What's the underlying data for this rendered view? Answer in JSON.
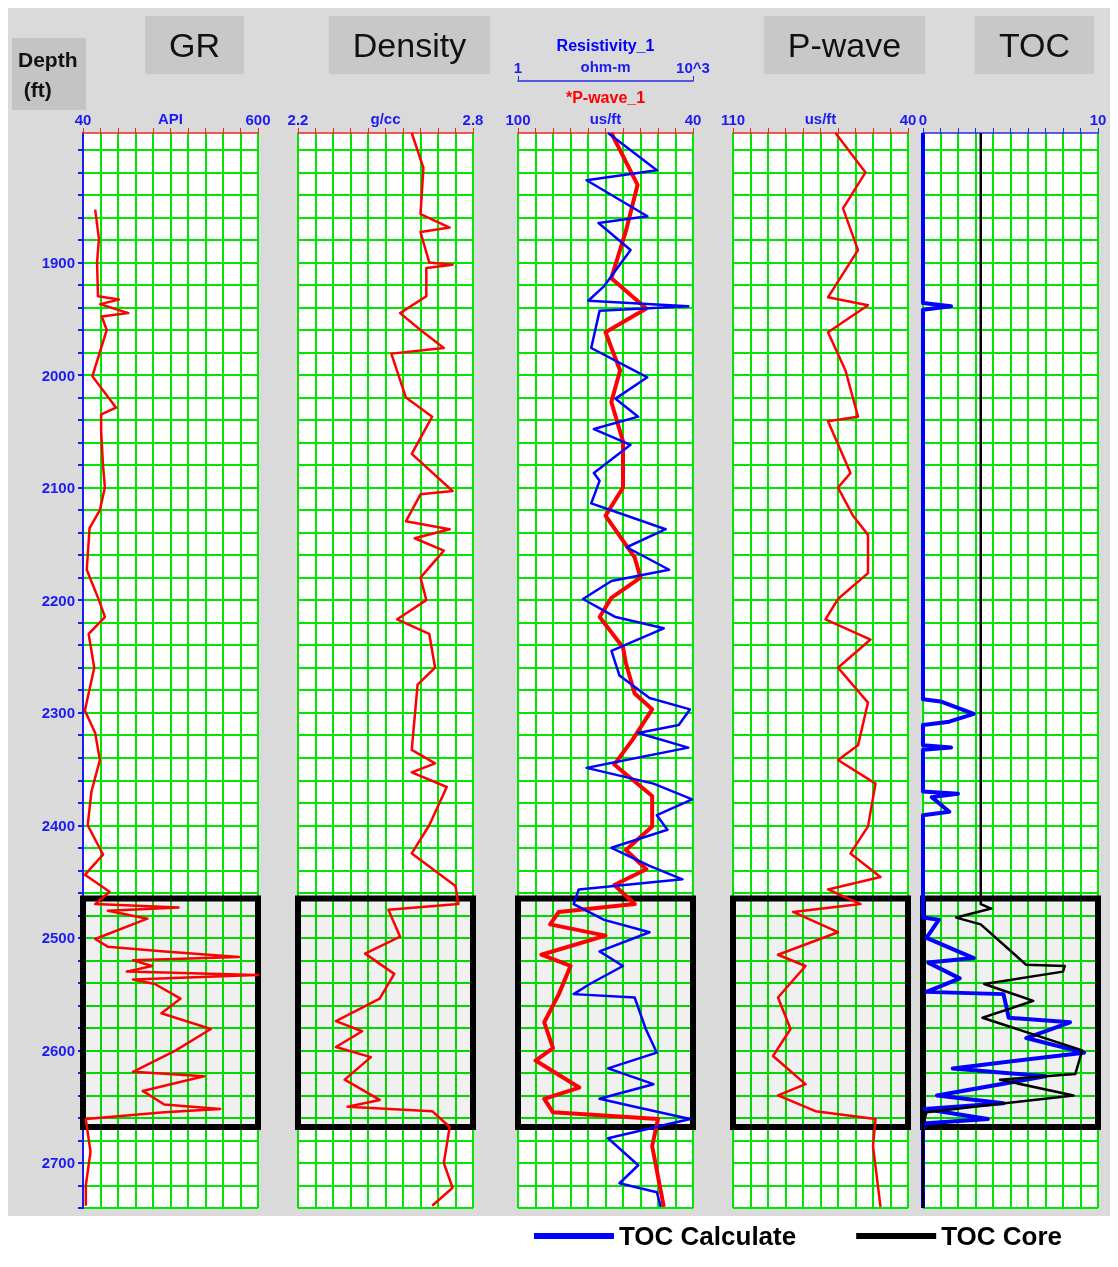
{
  "chart_data": [
    {
      "type": "line",
      "title": "GR",
      "xlabel": "API",
      "ylabel": "Depth (ft)",
      "xlim": [
        40,
        600
      ],
      "xticks": [
        40,
        {
          "value": 96,
          "label": null
        },
        {
          "value": 152,
          "label": null
        },
        {
          "value": 208,
          "label": null
        },
        {
          "value": 264,
          "label": null
        },
        {
          "value": 320,
          "label": null
        },
        {
          "value": 376,
          "label": null
        },
        {
          "value": 432,
          "label": null
        },
        {
          "value": 488,
          "label": null
        },
        {
          "value": 544,
          "label": null
        },
        600
      ],
      "ylim": [
        2740,
        1785
      ],
      "yticks": [
        {
          "value": 1800,
          "label": null
        },
        {
          "value": 1820,
          "label": null
        },
        {
          "value": 1840,
          "label": null
        },
        {
          "value": 1860,
          "label": null
        },
        {
          "value": 1880,
          "label": null
        },
        1900,
        {
          "value": 1920,
          "label": null
        },
        {
          "value": 1940,
          "label": null
        },
        {
          "value": 1960,
          "label": null
        },
        {
          "value": 1980,
          "label": null
        },
        2000,
        {
          "value": 2020,
          "label": null
        },
        {
          "value": 2040,
          "label": null
        },
        {
          "value": 2060,
          "label": null
        },
        {
          "value": 2080,
          "label": null
        },
        2100,
        {
          "value": 2120,
          "label": null
        },
        {
          "value": 2140,
          "label": null
        },
        {
          "value": 2160,
          "label": null
        },
        {
          "value": 2180,
          "label": null
        },
        2200,
        {
          "value": 2220,
          "label": null
        },
        {
          "value": 2240,
          "label": null
        },
        {
          "value": 2260,
          "label": null
        },
        {
          "value": 2280,
          "label": null
        },
        2300,
        {
          "value": 2320,
          "label": null
        },
        {
          "value": 2340,
          "label": null
        },
        {
          "value": 2360,
          "label": null
        },
        {
          "value": 2380,
          "label": null
        },
        2400,
        {
          "value": 2420,
          "label": null
        },
        {
          "value": 2440,
          "label": null
        },
        {
          "value": 2460,
          "label": null
        },
        {
          "value": 2480,
          "label": null
        },
        2500,
        {
          "value": 2520,
          "label": null
        },
        {
          "value": 2540,
          "label": null
        },
        {
          "value": 2560,
          "label": null
        },
        {
          "value": 2580,
          "label": null
        },
        2600,
        {
          "value": 2620,
          "label": null
        },
        {
          "value": 2640,
          "label": null
        },
        {
          "value": 2660,
          "label": null
        },
        {
          "value": 2680,
          "label": null
        },
        2700,
        {
          "value": 2720,
          "label": null
        },
        {
          "value": 2740,
          "label": null
        }
      ],
      "grid": true,
      "marker": "none",
      "line_style": "solid",
      "bands": [
        {
          "axis": "y",
          "from": 2465,
          "to": 2668,
          "color": "#000000"
        }
      ],
      "series": [
        {
          "color": "#ff0000",
          "x": [
            79,
            91,
            85,
            88,
            155,
            95,
            185,
            100,
            116,
            88,
            70,
            146,
            98,
            98,
            104,
            110,
            94,
            61,
            52,
            91,
            110,
            58,
            76,
            46,
            79,
            94,
            67,
            55,
            104,
            46,
            125,
            79,
            346,
            120,
            246,
            79,
            120,
            291,
            539,
            200,
            261,
            180,
            600,
            200,
            270,
            352,
            291,
            449,
            337,
            200,
            427,
            231,
            300,
            479,
            300,
            170,
            49,
            64,
            49,
            49
          ],
          "values": [
            1853,
            1879,
            1900,
            1930,
            1933,
            1937,
            1945,
            1948,
            1960,
            1985,
            2001,
            2029,
            2035,
            2050,
            2080,
            2100,
            2120,
            2136,
            2173,
            2200,
            2215,
            2230,
            2260,
            2298,
            2318,
            2342,
            2370,
            2400,
            2426,
            2444,
            2459,
            2470,
            2473,
            2476,
            2483,
            2501,
            2508,
            2512,
            2517,
            2520,
            2525,
            2530,
            2533,
            2537,
            2541,
            2554,
            2567,
            2581,
            2600,
            2619,
            2623,
            2636,
            2648,
            2652,
            2655,
            2658,
            2661,
            2690,
            2720,
            2738
          ]
        }
      ]
    },
    {
      "type": "line",
      "title": "Density",
      "xlabel": "g/cc",
      "xlim": [
        2.2,
        2.8
      ],
      "xticks": [
        2.2,
        {
          "value": 2.26,
          "label": null
        },
        {
          "value": 2.32,
          "label": null
        },
        {
          "value": 2.38,
          "label": null
        },
        {
          "value": 2.44,
          "label": null
        },
        {
          "value": 2.5,
          "label": null
        },
        {
          "value": 2.56,
          "label": null
        },
        {
          "value": 2.62,
          "label": null
        },
        {
          "value": 2.68,
          "label": null
        },
        {
          "value": 2.74,
          "label": null
        },
        2.8
      ],
      "ylim": [
        2740,
        1785
      ],
      "yticks": [
        {
          "value": 1800,
          "label": null
        },
        {
          "value": 1820,
          "label": null
        },
        {
          "value": 1840,
          "label": null
        },
        {
          "value": 1860,
          "label": null
        },
        {
          "value": 1880,
          "label": null
        },
        1900,
        {
          "value": 1920,
          "label": null
        },
        {
          "value": 1940,
          "label": null
        },
        {
          "value": 1960,
          "label": null
        },
        {
          "value": 1980,
          "label": null
        },
        2000,
        {
          "value": 2020,
          "label": null
        },
        {
          "value": 2040,
          "label": null
        },
        {
          "value": 2060,
          "label": null
        },
        {
          "value": 2080,
          "label": null
        },
        2100,
        {
          "value": 2120,
          "label": null
        },
        {
          "value": 2140,
          "label": null
        },
        {
          "value": 2160,
          "label": null
        },
        {
          "value": 2180,
          "label": null
        },
        2200,
        {
          "value": 2220,
          "label": null
        },
        {
          "value": 2240,
          "label": null
        },
        {
          "value": 2260,
          "label": null
        },
        {
          "value": 2280,
          "label": null
        },
        2300,
        {
          "value": 2320,
          "label": null
        },
        {
          "value": 2340,
          "label": null
        },
        {
          "value": 2360,
          "label": null
        },
        {
          "value": 2380,
          "label": null
        },
        2400,
        {
          "value": 2420,
          "label": null
        },
        {
          "value": 2440,
          "label": null
        },
        {
          "value": 2460,
          "label": null
        },
        {
          "value": 2480,
          "label": null
        },
        2500,
        {
          "value": 2520,
          "label": null
        },
        {
          "value": 2540,
          "label": null
        },
        {
          "value": 2560,
          "label": null
        },
        {
          "value": 2580,
          "label": null
        },
        2600,
        {
          "value": 2620,
          "label": null
        },
        {
          "value": 2640,
          "label": null
        },
        {
          "value": 2660,
          "label": null
        },
        {
          "value": 2680,
          "label": null
        },
        2700,
        {
          "value": 2720,
          "label": null
        },
        {
          "value": 2740,
          "label": null
        }
      ],
      "tick_labels": "x",
      "grid": true,
      "marker": "none",
      "line_style": "solid",
      "bands": [
        {
          "axis": "y",
          "from": 2465,
          "to": 2668,
          "color": "#000000"
        }
      ],
      "series": [
        {
          "color": "#ff0000",
          "x": [
            2.59,
            2.63,
            2.62,
            2.72,
            2.62,
            2.65,
            2.73,
            2.64,
            2.64,
            2.55,
            2.62,
            2.7,
            2.52,
            2.57,
            2.66,
            2.59,
            2.73,
            2.62,
            2.57,
            2.72,
            2.6,
            2.7,
            2.62,
            2.64,
            2.54,
            2.65,
            2.67,
            2.61,
            2.59,
            2.67,
            2.59,
            2.71,
            2.65,
            2.59,
            2.74,
            2.75,
            2.51,
            2.55,
            2.43,
            2.53,
            2.48,
            2.33,
            2.42,
            2.33,
            2.45,
            2.36,
            2.48,
            2.37,
            2.66,
            2.72,
            2.7,
            2.73,
            2.66
          ],
          "values": [
            1785,
            1816,
            1857,
            1869,
            1873,
            1900,
            1902,
            1905,
            1930,
            1945,
            1960,
            1976,
            1981,
            2020,
            2037,
            2070,
            2103,
            2106,
            2130,
            2137,
            2145,
            2156,
            2180,
            2200,
            2217,
            2230,
            2260,
            2275,
            2333,
            2345,
            2353,
            2366,
            2400,
            2425,
            2454,
            2470,
            2475,
            2499,
            2514,
            2532,
            2554,
            2574,
            2583,
            2597,
            2606,
            2626,
            2644,
            2650,
            2654,
            2668,
            2700,
            2722,
            2738
          ]
        }
      ]
    },
    {
      "type": "line",
      "xlabel": "ohm-m",
      "x2label": "us/ft",
      "log": "x",
      "xlim": [
        1,
        1000
      ],
      "xticks": [
        1,
        {
          "value": 1000,
          "label": "10^3"
        }
      ],
      "x2lim": [
        100,
        40
      ],
      "x2ticks": [
        100,
        {
          "value": 94,
          "label": null
        },
        {
          "value": 88,
          "label": null
        },
        {
          "value": 82,
          "label": null
        },
        {
          "value": 76,
          "label": null
        },
        {
          "value": 70,
          "label": null
        },
        {
          "value": 64,
          "label": null
        },
        {
          "value": 58,
          "label": null
        },
        {
          "value": 52,
          "label": null
        },
        {
          "value": 46,
          "label": null
        },
        40
      ],
      "ylim": [
        2740,
        1785
      ],
      "yticks": [
        {
          "value": 1800,
          "label": null
        },
        {
          "value": 1820,
          "label": null
        },
        {
          "value": 1840,
          "label": null
        },
        {
          "value": 1860,
          "label": null
        },
        {
          "value": 1880,
          "label": null
        },
        1900,
        {
          "value": 1920,
          "label": null
        },
        {
          "value": 1940,
          "label": null
        },
        {
          "value": 1960,
          "label": null
        },
        {
          "value": 1980,
          "label": null
        },
        2000,
        {
          "value": 2020,
          "label": null
        },
        {
          "value": 2040,
          "label": null
        },
        {
          "value": 2060,
          "label": null
        },
        {
          "value": 2080,
          "label": null
        },
        2100,
        {
          "value": 2120,
          "label": null
        },
        {
          "value": 2140,
          "label": null
        },
        {
          "value": 2160,
          "label": null
        },
        {
          "value": 2180,
          "label": null
        },
        2200,
        {
          "value": 2220,
          "label": null
        },
        {
          "value": 2240,
          "label": null
        },
        {
          "value": 2260,
          "label": null
        },
        {
          "value": 2280,
          "label": null
        },
        2300,
        {
          "value": 2320,
          "label": null
        },
        {
          "value": 2340,
          "label": null
        },
        {
          "value": 2360,
          "label": null
        },
        {
          "value": 2380,
          "label": null
        },
        2400,
        {
          "value": 2420,
          "label": null
        },
        {
          "value": 2440,
          "label": null
        },
        {
          "value": 2460,
          "label": null
        },
        {
          "value": 2480,
          "label": null
        },
        2500,
        {
          "value": 2520,
          "label": null
        },
        {
          "value": 2540,
          "label": null
        },
        {
          "value": 2560,
          "label": null
        },
        {
          "value": 2580,
          "label": null
        },
        2600,
        {
          "value": 2620,
          "label": null
        },
        {
          "value": 2640,
          "label": null
        },
        {
          "value": 2660,
          "label": null
        },
        {
          "value": 2680,
          "label": null
        },
        2700,
        {
          "value": 2720,
          "label": null
        },
        {
          "value": 2740,
          "label": null
        }
      ],
      "tick_labels": "x",
      "grid": true,
      "marker": "none",
      "line_style": "solid",
      "bands": [
        {
          "axis": "y",
          "from": 2465,
          "to": 2668,
          "color": "#000000"
        }
      ],
      "series": [
        {
          "name": "*P-wave_1",
          "axis": "x2",
          "color": "#ff0000",
          "x": [
            68,
            59,
            63,
            68,
            56,
            70,
            65,
            68,
            64,
            64,
            70,
            60,
            58,
            68,
            72,
            64,
            63,
            60,
            54,
            61,
            67,
            54,
            54,
            63,
            56,
            67,
            60,
            86,
            89,
            70,
            92,
            82,
            86,
            91,
            88,
            94,
            79,
            91,
            88,
            52,
            54,
            50
          ],
          "values": [
            1785,
            1831,
            1872,
            1914,
            1941,
            1962,
            1996,
            2024,
            2059,
            2100,
            2125,
            2162,
            2180,
            2198,
            2215,
            2242,
            2256,
            2283,
            2297,
            2325,
            2346,
            2374,
            2401,
            2422,
            2439,
            2453,
            2470,
            2477,
            2488,
            2498,
            2515,
            2525,
            2550,
            2575,
            2598,
            2609,
            2633,
            2643,
            2655,
            2661,
            2685,
            2739
          ]
        },
        {
          "name": "Resistivity_1",
          "color": "#0000ff",
          "x": [
            35,
            240,
            15,
            165,
            24,
            85,
            30,
            16,
            830,
            25,
            18,
            165,
            47,
            115,
            20,
            85,
            20,
            25,
            18,
            340,
            73,
            390,
            40,
            13,
            47,
            315,
            40,
            55,
            180,
            890,
            570,
            115,
            830,
            15,
            210,
            970,
            240,
            365,
            40,
            180,
            660,
            11,
            9,
            30,
            180,
            25,
            63,
            17,
            9,
            100,
            155,
            240,
            35,
            210,
            25,
            100,
            890,
            35,
            115,
            55,
            240,
            280
          ],
          "values": [
            1785,
            1818,
            1827,
            1859,
            1865,
            1889,
            1921,
            1934,
            1939,
            1943,
            1976,
            2002,
            2021,
            2037,
            2048,
            2062,
            2087,
            2094,
            2114,
            2137,
            2153,
            2173,
            2183,
            2199,
            2215,
            2225,
            2245,
            2267,
            2287,
            2297,
            2311,
            2318,
            2331,
            2349,
            2363,
            2377,
            2391,
            2404,
            2420,
            2436,
            2448,
            2457,
            2470,
            2484,
            2495,
            2512,
            2525,
            2541,
            2550,
            2553,
            2581,
            2602,
            2616,
            2630,
            2643,
            2650,
            2661,
            2678,
            2702,
            2718,
            2726,
            2739
          ]
        }
      ]
    },
    {
      "type": "line",
      "title": "P-wave",
      "xlabel": "us/ft",
      "xlim": [
        110,
        40
      ],
      "xticks": [
        110,
        {
          "value": 103,
          "label": null
        },
        {
          "value": 96,
          "label": null
        },
        {
          "value": 89,
          "label": null
        },
        {
          "value": 82,
          "label": null
        },
        {
          "value": 75,
          "label": null
        },
        {
          "value": 68,
          "label": null
        },
        {
          "value": 61,
          "label": null
        },
        {
          "value": 54,
          "label": null
        },
        {
          "value": 47,
          "label": null
        },
        40
      ],
      "ylim": [
        2740,
        1785
      ],
      "yticks": [
        {
          "value": 1800,
          "label": null
        },
        {
          "value": 1820,
          "label": null
        },
        {
          "value": 1840,
          "label": null
        },
        {
          "value": 1860,
          "label": null
        },
        {
          "value": 1880,
          "label": null
        },
        1900,
        {
          "value": 1920,
          "label": null
        },
        {
          "value": 1940,
          "label": null
        },
        {
          "value": 1960,
          "label": null
        },
        {
          "value": 1980,
          "label": null
        },
        2000,
        {
          "value": 2020,
          "label": null
        },
        {
          "value": 2040,
          "label": null
        },
        {
          "value": 2060,
          "label": null
        },
        {
          "value": 2080,
          "label": null
        },
        2100,
        {
          "value": 2120,
          "label": null
        },
        {
          "value": 2140,
          "label": null
        },
        {
          "value": 2160,
          "label": null
        },
        {
          "value": 2180,
          "label": null
        },
        2200,
        {
          "value": 2220,
          "label": null
        },
        {
          "value": 2240,
          "label": null
        },
        {
          "value": 2260,
          "label": null
        },
        {
          "value": 2280,
          "label": null
        },
        2300,
        {
          "value": 2320,
          "label": null
        },
        {
          "value": 2340,
          "label": null
        },
        {
          "value": 2360,
          "label": null
        },
        {
          "value": 2380,
          "label": null
        },
        2400,
        {
          "value": 2420,
          "label": null
        },
        {
          "value": 2440,
          "label": null
        },
        {
          "value": 2460,
          "label": null
        },
        {
          "value": 2480,
          "label": null
        },
        2500,
        {
          "value": 2520,
          "label": null
        },
        {
          "value": 2540,
          "label": null
        },
        {
          "value": 2560,
          "label": null
        },
        {
          "value": 2580,
          "label": null
        },
        2600,
        {
          "value": 2620,
          "label": null
        },
        {
          "value": 2640,
          "label": null
        },
        {
          "value": 2660,
          "label": null
        },
        {
          "value": 2680,
          "label": null
        },
        2700,
        {
          "value": 2720,
          "label": null
        },
        {
          "value": 2740,
          "label": null
        }
      ],
      "tick_labels": "x",
      "grid": true,
      "marker": "none",
      "line_style": "solid",
      "bands": [
        {
          "axis": "y",
          "from": 2465,
          "to": 2668,
          "color": "#000000"
        }
      ],
      "series": [
        {
          "color": "#ff0000",
          "x": [
            69,
            57,
            66,
            60,
            72,
            56,
            72,
            65,
            60,
            72,
            63,
            68,
            62,
            56,
            56,
            68,
            73,
            55,
            68,
            56,
            60,
            68,
            53,
            56,
            63,
            51,
            72,
            59,
            86,
            68,
            92,
            81,
            92,
            87,
            94,
            81,
            92,
            77,
            53,
            54,
            51
          ],
          "values": [
            1785,
            1820,
            1852,
            1889,
            1931,
            1938,
            1962,
            1996,
            2037,
            2041,
            2087,
            2100,
            2125,
            2142,
            2176,
            2199,
            2217,
            2235,
            2260,
            2291,
            2329,
            2342,
            2363,
            2401,
            2425,
            2446,
            2457,
            2470,
            2477,
            2495,
            2515,
            2525,
            2553,
            2581,
            2605,
            2630,
            2640,
            2654,
            2661,
            2685,
            2739
          ]
        }
      ]
    },
    {
      "type": "line",
      "title": "TOC",
      "xlim": [
        0,
        10
      ],
      "xticks": [
        0,
        {
          "value": 1,
          "label": null
        },
        {
          "value": 2,
          "label": null
        },
        {
          "value": 3,
          "label": null
        },
        {
          "value": 4,
          "label": null
        },
        {
          "value": 5,
          "label": null
        },
        {
          "value": 6,
          "label": null
        },
        {
          "value": 7,
          "label": null
        },
        {
          "value": 8,
          "label": null
        },
        {
          "value": 9,
          "label": null
        },
        10
      ],
      "ylim": [
        2740,
        1785
      ],
      "yticks": [
        {
          "value": 1800,
          "label": null
        },
        {
          "value": 1820,
          "label": null
        },
        {
          "value": 1840,
          "label": null
        },
        {
          "value": 1860,
          "label": null
        },
        {
          "value": 1880,
          "label": null
        },
        1900,
        {
          "value": 1920,
          "label": null
        },
        {
          "value": 1940,
          "label": null
        },
        {
          "value": 1960,
          "label": null
        },
        {
          "value": 1980,
          "label": null
        },
        2000,
        {
          "value": 2020,
          "label": null
        },
        {
          "value": 2040,
          "label": null
        },
        {
          "value": 2060,
          "label": null
        },
        {
          "value": 2080,
          "label": null
        },
        2100,
        {
          "value": 2120,
          "label": null
        },
        {
          "value": 2140,
          "label": null
        },
        {
          "value": 2160,
          "label": null
        },
        {
          "value": 2180,
          "label": null
        },
        2200,
        {
          "value": 2220,
          "label": null
        },
        {
          "value": 2240,
          "label": null
        },
        {
          "value": 2260,
          "label": null
        },
        {
          "value": 2280,
          "label": null
        },
        2300,
        {
          "value": 2320,
          "label": null
        },
        {
          "value": 2340,
          "label": null
        },
        {
          "value": 2360,
          "label": null
        },
        {
          "value": 2380,
          "label": null
        },
        2400,
        {
          "value": 2420,
          "label": null
        },
        {
          "value": 2440,
          "label": null
        },
        {
          "value": 2460,
          "label": null
        },
        {
          "value": 2480,
          "label": null
        },
        2500,
        {
          "value": 2520,
          "label": null
        },
        {
          "value": 2540,
          "label": null
        },
        {
          "value": 2560,
          "label": null
        },
        {
          "value": 2580,
          "label": null
        },
        2600,
        {
          "value": 2620,
          "label": null
        },
        {
          "value": 2640,
          "label": null
        },
        {
          "value": 2660,
          "label": null
        },
        {
          "value": 2680,
          "label": null
        },
        2700,
        {
          "value": 2720,
          "label": null
        },
        {
          "value": 2740,
          "label": null
        }
      ],
      "tick_labels": "x",
      "grid": true,
      "marker": "none",
      "line_style": "solid",
      "legend": "bottom",
      "bands": [
        {
          "axis": "y",
          "from": 2465,
          "to": 2668,
          "color": "#000000"
        }
      ],
      "series": [
        {
          "name": "TOC Calculate",
          "color": "#0000ff",
          "x": [
            0,
            0,
            1.6,
            0,
            0,
            1.0,
            2.9,
            1.5,
            0,
            0,
            1.6,
            0,
            0,
            2.0,
            0.5,
            1.5,
            0,
            0,
            0.9,
            0.2,
            2.9,
            0.3,
            2.1,
            0.2,
            4.6,
            4.9,
            8.4,
            5.9,
            9.2,
            1.7,
            7.0,
            0.8,
            4.6,
            0.1,
            3.7,
            0,
            0
          ],
          "values": [
            1785,
            1936,
            1939,
            1942,
            2288,
            2290,
            2301,
            2308,
            2311,
            2329,
            2331,
            2333,
            2370,
            2372,
            2375,
            2388,
            2391,
            2482,
            2484,
            2500,
            2518,
            2522,
            2536,
            2548,
            2550,
            2571,
            2575,
            2589,
            2602,
            2616,
            2623,
            2640,
            2647,
            2652,
            2661,
            2665,
            2740
          ]
        },
        {
          "name": "TOC Core",
          "color": "#000000",
          "x": [
            3.3,
            3.3,
            3.9,
            1.9,
            3.3,
            5.9,
            8.1,
            8.0,
            3.5,
            6.3,
            3.4,
            9.1,
            8.7,
            4.4,
            8.6,
            0.2,
            0,
            0
          ],
          "values": [
            1785,
            2470,
            2474,
            2482,
            2488,
            2524,
            2525,
            2530,
            2541,
            2556,
            2571,
            2600,
            2621,
            2626,
            2640,
            2655,
            2665,
            2740
          ]
        }
      ]
    }
  ]
}
